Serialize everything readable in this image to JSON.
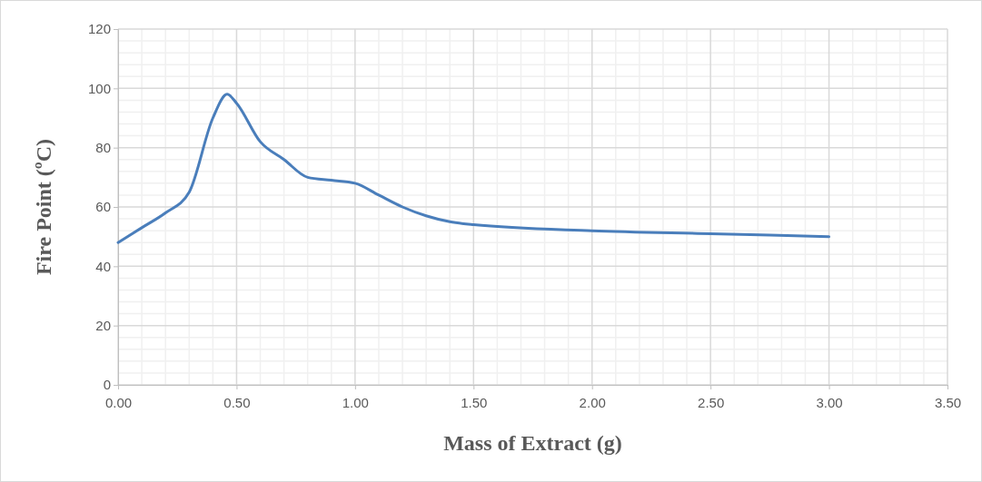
{
  "chart_data": {
    "type": "line",
    "xlabel": "Mass of Extract (g)",
    "ylabel": "Fire Point (ºC)",
    "x": [
      0,
      0.1,
      0.2,
      0.3,
      0.4,
      0.46,
      0.5,
      0.6,
      0.7,
      0.8,
      0.9,
      1.0,
      1.1,
      1.2,
      1.3,
      1.4,
      1.5,
      2.0,
      2.5,
      3.0
    ],
    "series": [
      {
        "color": "#4a7ebb",
        "values": [
          48,
          53,
          58,
          65,
          90,
          98,
          95,
          82,
          76,
          70,
          69,
          68,
          64,
          60,
          57,
          55,
          54,
          52,
          51,
          50
        ]
      }
    ],
    "xlim": [
      0,
      3.5
    ],
    "xticks": [
      {
        "value": 0,
        "label": "0.00"
      },
      {
        "value": 0.5,
        "label": "0.50"
      },
      {
        "value": 1,
        "label": "1.00"
      },
      {
        "value": 1.5,
        "label": "1.50"
      },
      {
        "value": 2,
        "label": "2.00"
      },
      {
        "value": 2.5,
        "label": "2.50"
      },
      {
        "value": 3,
        "label": "3.00"
      },
      {
        "value": 3.5,
        "label": "3.50"
      }
    ],
    "ylim": [
      0,
      120
    ],
    "yticks": [
      0,
      20,
      40,
      60,
      80,
      100,
      120
    ],
    "grid": true,
    "marker": "none",
    "line_style": "solid"
  }
}
